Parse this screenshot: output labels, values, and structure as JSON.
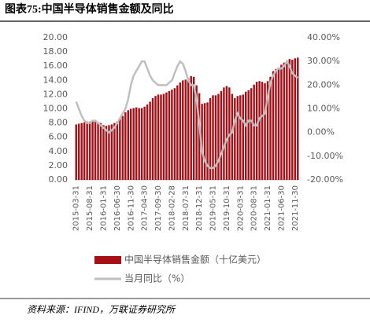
{
  "chart_data": {
    "type": "bar-line",
    "title": "图表75:中国半导体销售金额及同比",
    "source": "资料来源：IFIND，万联证券研究所",
    "categories": [
      "2015-03-31",
      null,
      null,
      null,
      null,
      "2015-08-31",
      null,
      null,
      null,
      null,
      "2016-01-31",
      null,
      null,
      null,
      null,
      "2016-06-30",
      null,
      null,
      null,
      null,
      "2016-11-30",
      null,
      null,
      null,
      null,
      "2017-04-30",
      null,
      null,
      null,
      null,
      "2017-09-30",
      null,
      null,
      null,
      null,
      "2018-02-28",
      null,
      null,
      null,
      null,
      "2018-07-31",
      null,
      null,
      null,
      null,
      "2018-12-31",
      null,
      null,
      null,
      null,
      "2019-05-31",
      null,
      null,
      null,
      null,
      "2019-10-31",
      null,
      null,
      null,
      null,
      "2020-03-31",
      null,
      null,
      null,
      null,
      "2020-08-31",
      null,
      null,
      null,
      null,
      "2021-01-31",
      null,
      null,
      null,
      null,
      "2021-06-30",
      null,
      null,
      null,
      null,
      "2021-11-30",
      null
    ],
    "series": [
      {
        "name": "中国半导体销售金额（十亿美元）",
        "color": "#a50f15",
        "type": "bar",
        "values": [
          7.8,
          7.9,
          8.0,
          8.1,
          8.2,
          8.2,
          8.3,
          8.2,
          8.1,
          8.0,
          7.7,
          7.6,
          7.7,
          7.8,
          8.0,
          8.2,
          8.6,
          9.0,
          9.5,
          9.8,
          10.0,
          10.1,
          10.2,
          10.1,
          10.1,
          10.3,
          10.6,
          11.0,
          11.5,
          11.8,
          12.0,
          12.0,
          12.1,
          12.3,
          12.5,
          12.7,
          12.9,
          13.3,
          13.7,
          14.0,
          14.1,
          14.3,
          14.6,
          14.5,
          13.3,
          12.2,
          10.7,
          10.8,
          10.9,
          11.5,
          11.9,
          11.9,
          12.1,
          12.5,
          13.0,
          13.2,
          13.0,
          12.1,
          11.5,
          11.8,
          11.9,
          12.0,
          12.4,
          12.6,
          12.9,
          13.4,
          13.8,
          13.9,
          13.8,
          13.6,
          13.9,
          14.5,
          15.3,
          15.6,
          15.8,
          16.2,
          16.5,
          16.8,
          17.0,
          16.9,
          17.1,
          17.2
        ]
      },
      {
        "name": "当月同比（%）",
        "color": "#bfbfbf",
        "type": "line",
        "axis": "y2",
        "values": [
          13,
          10,
          7,
          5,
          4,
          4,
          5,
          5,
          4,
          3,
          2,
          1,
          0,
          1,
          2,
          4,
          6,
          8,
          10,
          14,
          20,
          24,
          26,
          28,
          30,
          30,
          27,
          24,
          22,
          21,
          20,
          20,
          20,
          20,
          21,
          22,
          25,
          28,
          30,
          29,
          26,
          22,
          20,
          20,
          14,
          4,
          -8,
          -12,
          -14,
          -15,
          -15,
          -14,
          -12,
          -9,
          -6,
          -3,
          -1,
          0,
          5,
          8,
          6,
          5,
          3,
          5,
          5,
          3,
          3,
          6,
          7,
          8,
          15,
          21,
          24,
          26,
          27,
          27,
          28,
          30,
          28,
          25,
          24,
          23
        ]
      }
    ],
    "ylim": [
      0,
      20
    ],
    "yticks": [
      {
        "value": 0,
        "label": "0.00"
      },
      {
        "value": 2,
        "label": "2.00"
      },
      {
        "value": 4,
        "label": "4.00"
      },
      {
        "value": 6,
        "label": "6.00"
      },
      {
        "value": 8,
        "label": "8.00"
      },
      {
        "value": 10,
        "label": "10.00"
      },
      {
        "value": 12,
        "label": "12.00"
      },
      {
        "value": 14,
        "label": "14.00"
      },
      {
        "value": 16,
        "label": "16.00"
      },
      {
        "value": 18,
        "label": "18.00"
      },
      {
        "value": 20,
        "label": "20.00"
      }
    ],
    "y2lim": [
      -20,
      40
    ],
    "y2ticks": [
      {
        "value": -20,
        "label": "-20.00%"
      },
      {
        "value": -10,
        "label": "-10.00%"
      },
      {
        "value": 0,
        "label": "0.00%"
      },
      {
        "value": 10,
        "label": "10.00%"
      },
      {
        "value": 20,
        "label": "20.00%"
      },
      {
        "value": 30,
        "label": "30.00%"
      },
      {
        "value": 40,
        "label": "40.00%"
      }
    ]
  }
}
